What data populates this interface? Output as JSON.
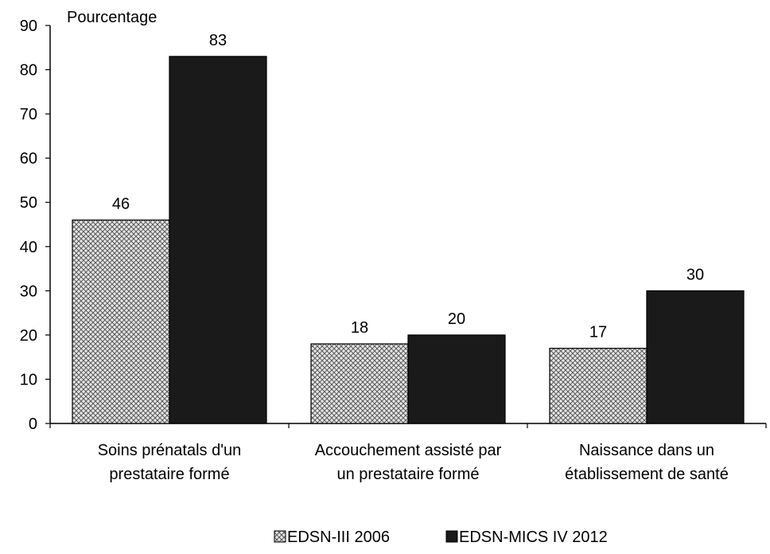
{
  "chart_data": {
    "type": "bar",
    "title": "",
    "ylabel": "Pourcentage",
    "xlabel": "",
    "ylim": [
      0,
      90
    ],
    "yticks": [
      0,
      10,
      20,
      30,
      40,
      50,
      60,
      70,
      80,
      90
    ],
    "categories": [
      [
        "Soins prénatals d'un",
        "prestataire formé"
      ],
      [
        "Accouchement assisté par",
        "un prestataire formé"
      ],
      [
        "Naissance dans un",
        "établissement de santé"
      ]
    ],
    "series": [
      {
        "name": "EDSN-III 2006",
        "values": [
          46,
          18,
          17
        ],
        "pattern": "crosshatch",
        "color": "#9a9a9a"
      },
      {
        "name": "EDSN-MICS IV 2012",
        "values": [
          83,
          20,
          30
        ],
        "pattern": "solid",
        "color": "#1a1a1a"
      }
    ],
    "data_labels": [
      [
        "46",
        "18",
        "17"
      ],
      [
        "83",
        "20",
        "30"
      ]
    ],
    "grid": false,
    "legend_position": "bottom"
  }
}
